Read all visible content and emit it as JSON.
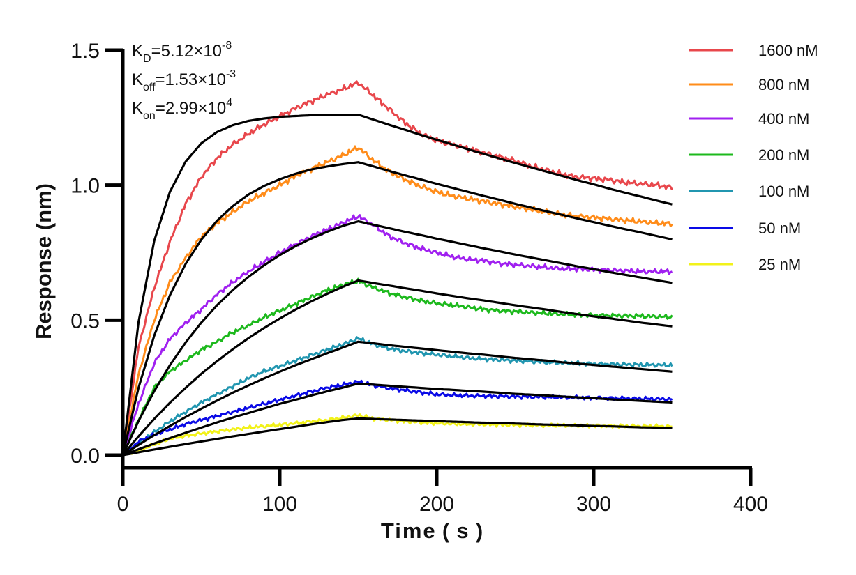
{
  "chart_data": {
    "type": "line",
    "title": "",
    "xlabel": "Time ( s )",
    "ylabel": "Response (nm)",
    "xlim": [
      0,
      400
    ],
    "ylim": [
      0,
      1.5
    ],
    "x_ticks": [
      "0",
      "100",
      "200",
      "300",
      "400"
    ],
    "y_ticks": [
      "0.0",
      "0.5",
      "1.0",
      "1.5"
    ],
    "grid": false,
    "legend_position": "top-right",
    "annotations": [
      {
        "name": "KD",
        "symbol": "K",
        "subscript": "D",
        "value": "=5.12×10",
        "exponent": "-8"
      },
      {
        "name": "Koff",
        "symbol": "K",
        "subscript": "off",
        "value": "=1.53×10",
        "exponent": "-3"
      },
      {
        "name": "Kon",
        "symbol": "K",
        "subscript": "on",
        "value": "=2.99×10",
        "exponent": "4"
      }
    ],
    "x": [
      0,
      10,
      20,
      30,
      40,
      50,
      60,
      70,
      80,
      90,
      100,
      110,
      120,
      130,
      140,
      150,
      160,
      170,
      180,
      190,
      200,
      210,
      220,
      230,
      240,
      250,
      260,
      270,
      280,
      290,
      300,
      310,
      320,
      330,
      340,
      350
    ],
    "series": [
      {
        "name": "1600 nM",
        "color": "#E8474C",
        "values": [
          0,
          0.4,
          0.62,
          0.79,
          0.93,
          1.03,
          1.1,
          1.15,
          1.19,
          1.225,
          1.255,
          1.285,
          1.31,
          1.335,
          1.355,
          1.38,
          1.33,
          1.28,
          1.23,
          1.19,
          1.165,
          1.15,
          1.135,
          1.12,
          1.105,
          1.09,
          1.07,
          1.055,
          1.04,
          1.03,
          1.025,
          1.02,
          1.01,
          1.005,
          1.0,
          0.99
        ],
        "fit": [
          0,
          0.492,
          0.793,
          0.975,
          1.087,
          1.155,
          1.197,
          1.222,
          1.238,
          1.247,
          1.253,
          1.256,
          1.259,
          1.26,
          1.261,
          1.261,
          1.242,
          1.223,
          1.205,
          1.186,
          1.168,
          1.151,
          1.133,
          1.116,
          1.099,
          1.082,
          1.066,
          1.05,
          1.034,
          1.018,
          1.003,
          0.987,
          0.972,
          0.958,
          0.943,
          0.929
        ]
      },
      {
        "name": "800 nM",
        "color": "#FF8C1A",
        "values": [
          0,
          0.3,
          0.5,
          0.64,
          0.73,
          0.81,
          0.86,
          0.9,
          0.94,
          0.97,
          1.0,
          1.035,
          1.06,
          1.085,
          1.11,
          1.14,
          1.09,
          1.05,
          1.02,
          0.995,
          0.975,
          0.96,
          0.95,
          0.94,
          0.93,
          0.92,
          0.91,
          0.9,
          0.89,
          0.885,
          0.88,
          0.875,
          0.87,
          0.865,
          0.86,
          0.857
        ],
        "fit": [
          0,
          0.249,
          0.442,
          0.592,
          0.708,
          0.798,
          0.868,
          0.922,
          0.965,
          0.997,
          1.022,
          1.042,
          1.058,
          1.069,
          1.078,
          1.085,
          1.069,
          1.052,
          1.036,
          1.021,
          1.005,
          0.99,
          0.975,
          0.96,
          0.946,
          0.931,
          0.917,
          0.903,
          0.89,
          0.876,
          0.863,
          0.85,
          0.837,
          0.825,
          0.812,
          0.799
        ]
      },
      {
        "name": "400 nM",
        "color": "#A020F0",
        "values": [
          0,
          0.19,
          0.34,
          0.43,
          0.49,
          0.54,
          0.595,
          0.64,
          0.68,
          0.715,
          0.75,
          0.78,
          0.81,
          0.835,
          0.86,
          0.885,
          0.85,
          0.81,
          0.785,
          0.765,
          0.75,
          0.735,
          0.725,
          0.72,
          0.71,
          0.705,
          0.7,
          0.695,
          0.69,
          0.69,
          0.687,
          0.685,
          0.683,
          0.68,
          0.68,
          0.68
        ],
        "fit": [
          0,
          0.126,
          0.237,
          0.333,
          0.417,
          0.491,
          0.555,
          0.611,
          0.66,
          0.703,
          0.741,
          0.774,
          0.802,
          0.827,
          0.849,
          0.866,
          0.853,
          0.84,
          0.827,
          0.815,
          0.802,
          0.79,
          0.778,
          0.766,
          0.755,
          0.743,
          0.732,
          0.721,
          0.71,
          0.699,
          0.689,
          0.678,
          0.668,
          0.658,
          0.648,
          0.638
        ]
      },
      {
        "name": "200 nM",
        "color": "#1DB91D",
        "values": [
          0,
          0.13,
          0.25,
          0.31,
          0.35,
          0.39,
          0.42,
          0.455,
          0.48,
          0.51,
          0.535,
          0.56,
          0.585,
          0.61,
          0.63,
          0.645,
          0.62,
          0.6,
          0.585,
          0.572,
          0.562,
          0.555,
          0.548,
          0.54,
          0.535,
          0.532,
          0.528,
          0.525,
          0.522,
          0.52,
          0.518,
          0.517,
          0.516,
          0.515,
          0.513,
          0.512
        ],
        "fit": [
          0,
          0.0695,
          0.134,
          0.194,
          0.249,
          0.301,
          0.348,
          0.392,
          0.433,
          0.471,
          0.506,
          0.539,
          0.569,
          0.597,
          0.623,
          0.647,
          0.637,
          0.628,
          0.618,
          0.609,
          0.599,
          0.59,
          0.581,
          0.573,
          0.564,
          0.555,
          0.547,
          0.539,
          0.53,
          0.522,
          0.514,
          0.507,
          0.499,
          0.491,
          0.484,
          0.477
        ]
      },
      {
        "name": "100 nM",
        "color": "#2196B0",
        "values": [
          0,
          0.045,
          0.085,
          0.125,
          0.16,
          0.195,
          0.225,
          0.255,
          0.285,
          0.31,
          0.33,
          0.35,
          0.37,
          0.39,
          0.41,
          0.432,
          0.41,
          0.395,
          0.385,
          0.378,
          0.372,
          0.366,
          0.36,
          0.356,
          0.353,
          0.35,
          0.347,
          0.344,
          0.342,
          0.34,
          0.338,
          0.337,
          0.336,
          0.335,
          0.334,
          0.333
        ],
        "fit": [
          0,
          0.0378,
          0.0739,
          0.108,
          0.141,
          0.172,
          0.202,
          0.231,
          0.258,
          0.284,
          0.309,
          0.333,
          0.355,
          0.377,
          0.398,
          0.42,
          0.414,
          0.407,
          0.401,
          0.395,
          0.389,
          0.383,
          0.377,
          0.372,
          0.366,
          0.36,
          0.355,
          0.35,
          0.344,
          0.339,
          0.334,
          0.329,
          0.324,
          0.319,
          0.314,
          0.309
        ]
      },
      {
        "name": "50 nM",
        "color": "#0A0AE6",
        "values": [
          0,
          0.05,
          0.075,
          0.095,
          0.115,
          0.13,
          0.145,
          0.16,
          0.175,
          0.19,
          0.205,
          0.22,
          0.235,
          0.25,
          0.26,
          0.272,
          0.258,
          0.248,
          0.24,
          0.232,
          0.225,
          0.222,
          0.22,
          0.219,
          0.218,
          0.217,
          0.216,
          0.215,
          0.214,
          0.213,
          0.212,
          0.211,
          0.21,
          0.209,
          0.208,
          0.207
        ],
        "fit": [
          0,
          0.0217,
          0.0428,
          0.0631,
          0.0828,
          0.102,
          0.121,
          0.139,
          0.156,
          0.173,
          0.19,
          0.205,
          0.221,
          0.236,
          0.25,
          0.265,
          0.261,
          0.257,
          0.253,
          0.249,
          0.245,
          0.242,
          0.238,
          0.235,
          0.231,
          0.227,
          0.224,
          0.221,
          0.217,
          0.214,
          0.211,
          0.207,
          0.204,
          0.201,
          0.198,
          0.195
        ]
      },
      {
        "name": "25 nM",
        "color": "#F2F21A",
        "values": [
          0,
          0.015,
          0.04,
          0.06,
          0.072,
          0.08,
          0.088,
          0.095,
          0.102,
          0.107,
          0.112,
          0.118,
          0.124,
          0.13,
          0.138,
          0.148,
          0.135,
          0.13,
          0.125,
          0.121,
          0.118,
          0.116,
          0.115,
          0.114,
          0.113,
          0.112,
          0.111,
          0.11,
          0.11,
          0.109,
          0.109,
          0.108,
          0.108,
          0.107,
          0.107,
          0.106
        ],
        "fit": [
          0,
          0.0105,
          0.0208,
          0.0309,
          0.0408,
          0.0505,
          0.0601,
          0.0694,
          0.0786,
          0.0876,
          0.0964,
          0.105,
          0.114,
          0.122,
          0.13,
          0.136,
          0.134,
          0.132,
          0.13,
          0.128,
          0.126,
          0.124,
          0.122,
          0.12,
          0.119,
          0.117,
          0.115,
          0.113,
          0.112,
          0.11,
          0.108,
          0.107,
          0.105,
          0.103,
          0.102,
          0.1
        ]
      }
    ],
    "fit_color": "#000000"
  }
}
